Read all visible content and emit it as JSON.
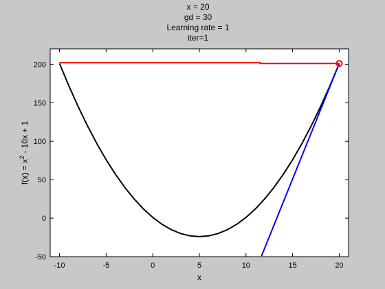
{
  "chart_data": {
    "type": "line",
    "title_lines": [
      "x = 20",
      "gd = 30",
      "Learning rate = 1",
      "iter=1"
    ],
    "xlabel": "x",
    "ylabel": "f(x) = x² - 10x + 1",
    "ylabel_parts": {
      "base": "f(x) = x",
      "sup": "2",
      "rest": " - 10x + 1"
    },
    "xlim": [
      -11,
      21
    ],
    "ylim": [
      -50,
      220
    ],
    "xticks": [
      -10,
      -5,
      0,
      5,
      10,
      15,
      20
    ],
    "yticks": [
      -50,
      0,
      50,
      100,
      150,
      200
    ],
    "grid": false,
    "series": [
      {
        "color": "#000000",
        "x": [
          -10,
          -9,
          -8,
          -7,
          -6,
          -5,
          -4,
          -3,
          -2,
          -1,
          0,
          1,
          2,
          3,
          4,
          5,
          6,
          7,
          8,
          9,
          10,
          11,
          12,
          13,
          14,
          15,
          16,
          17,
          18,
          19,
          20
        ],
        "y": [
          201,
          172,
          145,
          120,
          97,
          76,
          57,
          40,
          25,
          12,
          1,
          -8,
          -15,
          -20,
          -23,
          -24,
          -23,
          -20,
          -15,
          -8,
          1,
          12,
          25,
          40,
          57,
          76,
          97,
          120,
          145,
          172,
          201
        ]
      },
      {
        "color": "#0000ff",
        "x": [
          11.67,
          20
        ],
        "y": [
          -49,
          201
        ]
      },
      {
        "color": "#ff0000",
        "x": [
          -10,
          11.5,
          11.5,
          20
        ],
        "y": [
          202,
          202,
          201,
          201
        ]
      }
    ],
    "marker": {
      "x": 20,
      "y": 201,
      "color": "#ff0000"
    }
  }
}
